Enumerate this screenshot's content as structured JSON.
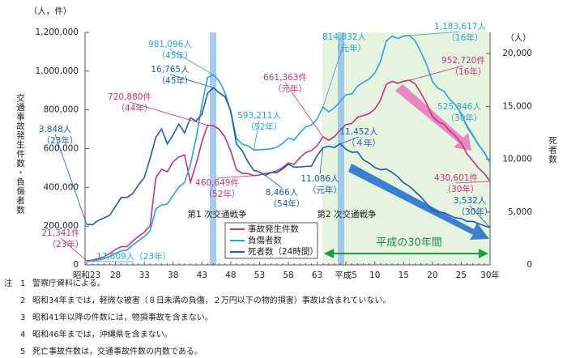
{
  "chart_data": {
    "type": "line",
    "y_unit_label": "（人，件）",
    "y2_unit_label": "（人）",
    "ylabel": "交通事故発生件数・負傷者数",
    "y2label": "死者数",
    "categories": [
      "昭和23",
      null,
      null,
      null,
      null,
      "28",
      null,
      null,
      null,
      null,
      "33",
      null,
      null,
      null,
      null,
      "38",
      null,
      null,
      null,
      null,
      "43",
      null,
      null,
      null,
      null,
      "48",
      null,
      null,
      null,
      null,
      "53",
      null,
      null,
      null,
      null,
      "58",
      null,
      null,
      null,
      null,
      "63",
      null,
      null,
      null,
      null,
      "平成5",
      null,
      null,
      null,
      null,
      "10",
      null,
      null,
      null,
      null,
      "15",
      null,
      null,
      null,
      null,
      "20",
      null,
      null,
      null,
      null,
      "25",
      null,
      null,
      null,
      null,
      "30年"
    ],
    "ylim": [
      0,
      1200000
    ],
    "yticks": [
      0,
      {
        "value": 200000,
        "label": "200,000"
      },
      {
        "value": 400000,
        "label": "400,000"
      },
      {
        "value": 600000,
        "label": "600,000"
      },
      {
        "value": 800000,
        "label": "800,000"
      },
      {
        "value": 1000000,
        "label": "1,000,000"
      },
      {
        "value": 1200000,
        "label": "1,200,000"
      }
    ],
    "y2lim": [
      0,
      22000
    ],
    "y2ticks": [
      0,
      {
        "value": 5000,
        "label": "5,000"
      },
      {
        "value": 10000,
        "label": "10,000"
      },
      {
        "value": 15000,
        "label": "15,000"
      },
      {
        "value": 20000,
        "label": "20,000"
      }
    ],
    "series": [
      {
        "name": "事故発生件数",
        "color": "#c4347a",
        "values": [
          21341,
          25113,
          33212,
          41423,
          58487,
          80019,
          93869,
          93981,
          122691,
          146833,
          168799,
          201292,
          449917,
          493693,
          479825,
          531966,
          557183,
          567286,
          425944,
          521481,
          635056,
          720880,
          718080,
          700290,
          659283,
          586713,
          490452,
          472938,
          471041,
          460649,
          464037,
          471573,
          476677,
          485578,
          502261,
          526362,
          518642,
          552788,
          579190,
          590723,
          614481,
          661363,
          643097,
          662392,
          695345,
          724675,
          729461,
          761794,
          771085,
          780401,
          803882,
          850371,
          931950,
          947253,
          936950,
          948281,
          952720,
          934346,
          887267,
          832704,
          766394,
          737637,
          725924,
          692084,
          665157,
          629033,
          573842,
          536899,
          499201,
          472165,
          430601
        ]
      },
      {
        "name": "負傷者数",
        "color": "#2aa3d8",
        "values": [
          17609,
          22000,
          25450,
          31274,
          43321,
          59280,
          72390,
          76501,
          102072,
          124530,
          145432,
          175951,
          289156,
          308697,
          313813,
          359089,
          401117,
          425666,
          517775,
          655377,
          828071,
          967000,
          981096,
          949689,
          889198,
          789948,
          651420,
          622467,
          613957,
          593211,
          594116,
          596282,
          598719,
          607346,
          626192,
          654822,
          644321,
          681346,
          712330,
          722179,
          752845,
          814832,
          790295,
          810245,
          844003,
          878633,
          881723,
          922677,
          942204,
          958925,
          990675,
          1050399,
          1155707,
          1180955,
          1168029,
          1181681,
          1183617,
          1157113,
          1098564,
          1034652,
          945703,
          911215,
          896297,
          854613,
          825392,
          781494,
          711374,
          666023,
          618853,
          580850,
          525846
        ]
      },
      {
        "name": "死者数（24時間）",
        "color": "#1c5ea8",
        "axis": "y2",
        "values": [
          3848,
          3790,
          4202,
          4429,
          4696,
          5544,
          6374,
          6379,
          6751,
          7575,
          8248,
          10079,
          12055,
          12865,
          11445,
          12301,
          13318,
          12484,
          13904,
          13618,
          14256,
          16257,
          16765,
          16278,
          15918,
          14574,
          11432,
          10792,
          9734,
          8945,
          8783,
          8466,
          8760,
          8719,
          9073,
          9520,
          9262,
          9261,
          9317,
          9347,
          10344,
          11086,
          11227,
          11109,
          11452,
          10942,
          10649,
          10684,
          9942,
          9640,
          9211,
          9006,
          9066,
          8747,
          8326,
          7768,
          7436,
          6937,
          6415,
          5796,
          5209,
          4979,
          4948,
          4691,
          4438,
          4388,
          4113,
          4117,
          3904,
          3694,
          3532
        ]
      }
    ],
    "annotations": [
      {
        "lines": [
          "1,183,617人",
          "（16年）"
        ]
      },
      {
        "lines": [
          "814,832人",
          "（元年）"
        ]
      },
      {
        "lines": [
          "981,096人",
          "（45年）"
        ]
      },
      {
        "lines": [
          "16,765人",
          "（45年）"
        ]
      },
      {
        "lines": [
          "952,720件",
          "（16年）"
        ]
      },
      {
        "lines": [
          "661,363件",
          "（元年）"
        ]
      },
      {
        "lines": [
          "720,880件",
          "（44年）"
        ]
      },
      {
        "lines": [
          "593,211人",
          "（52年）"
        ]
      },
      {
        "lines": [
          "525,846人",
          "（30年）"
        ]
      },
      {
        "lines": [
          "3,848人",
          "（23年）"
        ]
      },
      {
        "lines": [
          "11,452人",
          "（４年）"
        ]
      },
      {
        "lines": [
          "460,649件",
          "（52年）"
        ]
      },
      {
        "lines": [
          "8,466人",
          "（54年）"
        ]
      },
      {
        "lines": [
          "11,086人",
          "（元年）"
        ]
      },
      {
        "lines": [
          "430,601件",
          "（30年）"
        ]
      },
      {
        "lines": [
          "3,532人",
          "（30年）"
        ]
      },
      {
        "lines": [
          "21,341件",
          "（23年）"
        ]
      },
      {
        "lines": [
          "17,609人（23年）"
        ]
      }
    ],
    "period_labels": [
      "第1 次交通戦争",
      "第2 次交通戦争",
      "平成の30年間"
    ],
    "notes_head": "注",
    "notes": [
      {
        "num": "1",
        "text": "警察庁資料による。"
      },
      {
        "num": "2",
        "text": "昭和34年までは，軽微な被害（８日未満の負傷，２万円以下の物的損害）事故は含まれていない。"
      },
      {
        "num": "3",
        "text": "昭和41年以降の件数には，物損事故を含まない。"
      },
      {
        "num": "4",
        "text": "昭和46年までは，沖縄県を含まない。"
      },
      {
        "num": "5",
        "text": "死亡事故件数は，交通事故件数の内数である。"
      }
    ]
  }
}
